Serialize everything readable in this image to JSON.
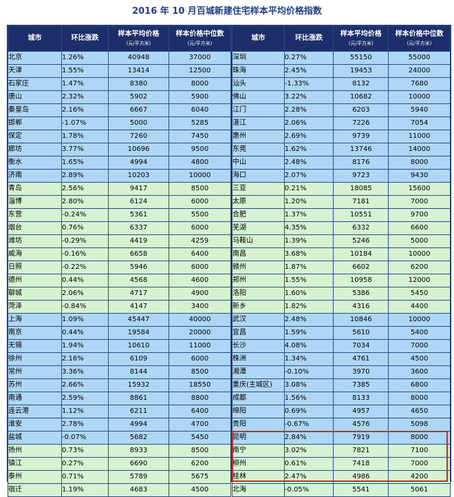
{
  "title": "2016 年 10 月百城新建住宅样本平均价格指数",
  "headers": {
    "city": "城市",
    "change": "环比涨跌",
    "avg": "样本平均价格",
    "avg_unit": "(元/平方米)",
    "median": "样本价格中位数",
    "median_unit": "(元/平方米)"
  },
  "left_rows": [
    {
      "city": "北京",
      "change": "1.26%",
      "avg": "40948",
      "median": "37000",
      "group": "blue"
    },
    {
      "city": "天津",
      "change": "1.55%",
      "avg": "13414",
      "median": "12500",
      "group": "blue"
    },
    {
      "city": "石家庄",
      "change": "1.47%",
      "avg": "8380",
      "median": "8000",
      "group": "blue"
    },
    {
      "city": "唐山",
      "change": "2.32%",
      "avg": "5902",
      "median": "5900",
      "group": "blue"
    },
    {
      "city": "秦皇岛",
      "change": "2.16%",
      "avg": "6667",
      "median": "6040",
      "group": "blue"
    },
    {
      "city": "邯郸",
      "change": "-1.07%",
      "avg": "5000",
      "median": "5285",
      "group": "blue"
    },
    {
      "city": "保定",
      "change": "1.78%",
      "avg": "7260",
      "median": "7450",
      "group": "blue"
    },
    {
      "city": "廊坊",
      "change": "3.77%",
      "avg": "10696",
      "median": "9500",
      "group": "blue"
    },
    {
      "city": "衡水",
      "change": "1.65%",
      "avg": "4994",
      "median": "4800",
      "group": "blue"
    },
    {
      "city": "济南",
      "change": "2.89%",
      "avg": "10203",
      "median": "10000",
      "group": "blue"
    },
    {
      "city": "青岛",
      "change": "2.56%",
      "avg": "9417",
      "median": "8500",
      "group": "green"
    },
    {
      "city": "淄博",
      "change": "2.80%",
      "avg": "6124",
      "median": "6000",
      "group": "green"
    },
    {
      "city": "东营",
      "change": "-0.24%",
      "avg": "5361",
      "median": "5500",
      "group": "green"
    },
    {
      "city": "烟台",
      "change": "0.76%",
      "avg": "6337",
      "median": "6000",
      "group": "green"
    },
    {
      "city": "潍坊",
      "change": "-0.29%",
      "avg": "4419",
      "median": "4259",
      "group": "green"
    },
    {
      "city": "威海",
      "change": "-0.16%",
      "avg": "6658",
      "median": "6400",
      "group": "green"
    },
    {
      "city": "日照",
      "change": "-0.22%",
      "avg": "5946",
      "median": "6000",
      "group": "green"
    },
    {
      "city": "德州",
      "change": "0.44%",
      "avg": "4568",
      "median": "4600",
      "group": "green"
    },
    {
      "city": "聊城",
      "change": "2.06%",
      "avg": "4717",
      "median": "4900",
      "group": "green"
    },
    {
      "city": "菏泽",
      "change": "-0.84%",
      "avg": "4147",
      "median": "3400",
      "group": "green"
    },
    {
      "city": "上海",
      "change": "1.09%",
      "avg": "45447",
      "median": "40000",
      "group": "blue"
    },
    {
      "city": "南京",
      "change": "0.44%",
      "avg": "19584",
      "median": "20000",
      "group": "blue"
    },
    {
      "city": "无锡",
      "change": "1.94%",
      "avg": "10610",
      "median": "11000",
      "group": "blue"
    },
    {
      "city": "徐州",
      "change": "2.16%",
      "avg": "6109",
      "median": "6000",
      "group": "blue"
    },
    {
      "city": "常州",
      "change": "3.36%",
      "avg": "8144",
      "median": "8500",
      "group": "blue"
    },
    {
      "city": "苏州",
      "change": "2.66%",
      "avg": "15932",
      "median": "18550",
      "group": "blue"
    },
    {
      "city": "南通",
      "change": "2.59%",
      "avg": "8861",
      "median": "8800",
      "group": "blue"
    },
    {
      "city": "连云港",
      "change": "1.12%",
      "avg": "6211",
      "median": "6400",
      "group": "blue"
    },
    {
      "city": "淮安",
      "change": "2.78%",
      "avg": "4994",
      "median": "4700",
      "group": "blue"
    },
    {
      "city": "盐城",
      "change": "-0.07%",
      "avg": "5682",
      "median": "5450",
      "group": "blue"
    },
    {
      "city": "扬州",
      "change": "0.73%",
      "avg": "8933",
      "median": "8500",
      "group": "green"
    },
    {
      "city": "镇江",
      "change": "0.27%",
      "avg": "6690",
      "median": "6200",
      "group": "green"
    },
    {
      "city": "泰州",
      "change": "0.71%",
      "avg": "5789",
      "median": "5675",
      "group": "green"
    },
    {
      "city": "宿迁",
      "change": "1.19%",
      "avg": "4683",
      "median": "4500",
      "group": "green"
    }
  ],
  "right_rows": [
    {
      "city": "深圳",
      "change": "0.27%",
      "avg": "55150",
      "median": "55000",
      "group": "blue"
    },
    {
      "city": "珠海",
      "change": "2.45%",
      "avg": "19453",
      "median": "24000",
      "group": "blue"
    },
    {
      "city": "汕头",
      "change": "-1.33%",
      "avg": "8132",
      "median": "7680",
      "group": "blue"
    },
    {
      "city": "佛山",
      "change": "3.22%",
      "avg": "10682",
      "median": "10000",
      "group": "blue"
    },
    {
      "city": "江门",
      "change": "2.28%",
      "avg": "6203",
      "median": "5940",
      "group": "blue"
    },
    {
      "city": "湛江",
      "change": "2.06%",
      "avg": "7226",
      "median": "7054",
      "group": "blue"
    },
    {
      "city": "惠州",
      "change": "2.69%",
      "avg": "9739",
      "median": "11000",
      "group": "blue"
    },
    {
      "city": "东莞",
      "change": "1.62%",
      "avg": "13746",
      "median": "14000",
      "group": "blue"
    },
    {
      "city": "中山",
      "change": "2.48%",
      "avg": "8176",
      "median": "8000",
      "group": "blue"
    },
    {
      "city": "海口",
      "change": "2.07%",
      "avg": "9723",
      "median": "9430",
      "group": "blue"
    },
    {
      "city": "三亚",
      "change": "0.21%",
      "avg": "18085",
      "median": "15600",
      "group": "green"
    },
    {
      "city": "太原",
      "change": "1.20%",
      "avg": "7181",
      "median": "7000",
      "group": "green"
    },
    {
      "city": "合肥",
      "change": "1.37%",
      "avg": "10551",
      "median": "9700",
      "group": "green"
    },
    {
      "city": "芜湖",
      "change": "4.35%",
      "avg": "6332",
      "median": "6600",
      "group": "green"
    },
    {
      "city": "马鞍山",
      "change": "1.39%",
      "avg": "5246",
      "median": "5000",
      "group": "green"
    },
    {
      "city": "南昌",
      "change": "3.68%",
      "avg": "10184",
      "median": "10000",
      "group": "green"
    },
    {
      "city": "赣州",
      "change": "1.87%",
      "avg": "6602",
      "median": "6200",
      "group": "green"
    },
    {
      "city": "郑州",
      "change": "1.55%",
      "avg": "10958",
      "median": "12000",
      "group": "green"
    },
    {
      "city": "洛阳",
      "change": "1.60%",
      "avg": "5386",
      "median": "5450",
      "group": "green"
    },
    {
      "city": "新乡",
      "change": "1.82%",
      "avg": "4316",
      "median": "4400",
      "group": "green"
    },
    {
      "city": "武汉",
      "change": "2.48%",
      "avg": "10846",
      "median": "10000",
      "group": "blue"
    },
    {
      "city": "宜昌",
      "change": "1.59%",
      "avg": "5610",
      "median": "5400",
      "group": "blue"
    },
    {
      "city": "长沙",
      "change": "4.08%",
      "avg": "7034",
      "median": "7000",
      "group": "blue"
    },
    {
      "city": "株洲",
      "change": "1.34%",
      "avg": "4761",
      "median": "4500",
      "group": "blue"
    },
    {
      "city": "湘潭",
      "change": "-0.10%",
      "avg": "3970",
      "median": "3600",
      "group": "blue"
    },
    {
      "city": "重庆(主城区)",
      "change": "3.08%",
      "avg": "7385",
      "median": "6800",
      "group": "blue"
    },
    {
      "city": "成都",
      "change": "1.56%",
      "avg": "8133",
      "median": "8000",
      "group": "blue"
    },
    {
      "city": "绵阳",
      "change": "0.69%",
      "avg": "4957",
      "median": "4650",
      "group": "blue"
    },
    {
      "city": "贵阳",
      "change": "-0.67%",
      "avg": "4576",
      "median": "5098",
      "group": "blue"
    },
    {
      "city": "昆明",
      "change": "2.84%",
      "avg": "7919",
      "median": "8000",
      "group": "blue"
    },
    {
      "city": "南宁",
      "change": "3.02%",
      "avg": "7821",
      "median": "7100",
      "group": "green"
    },
    {
      "city": "柳州",
      "change": "0.61%",
      "avg": "7418",
      "median": "7000",
      "group": "green"
    },
    {
      "city": "桂林",
      "change": "2.47%",
      "avg": "4986",
      "median": "4200",
      "group": "green"
    },
    {
      "city": "北海",
      "change": "-0.05%",
      "avg": "5541",
      "median": "5061",
      "group": "green"
    }
  ]
}
